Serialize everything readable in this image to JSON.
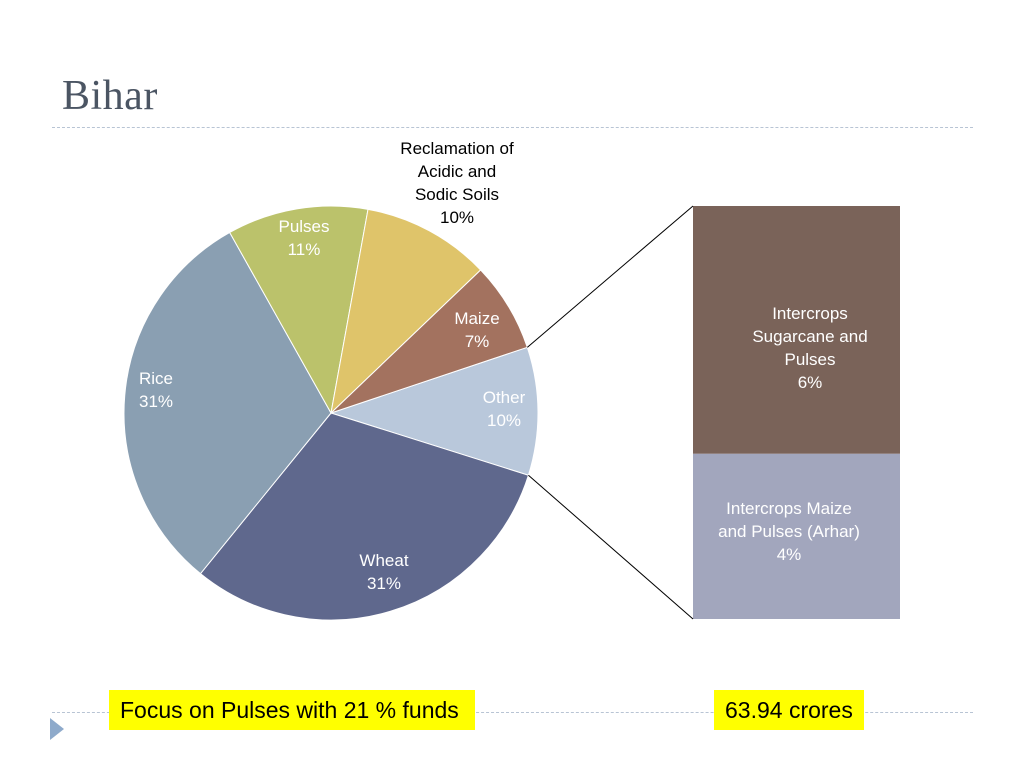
{
  "slide": {
    "title": "Bihar",
    "focus_text": "Focus on Pulses with 21 % funds",
    "amount_text": "63.94 crores",
    "highlight_color": "#ffff00"
  },
  "chart_data": {
    "type": "pie",
    "title": "",
    "slices": [
      {
        "label": "Other",
        "value": 10,
        "display": "10%",
        "color": "#b9c8db"
      },
      {
        "label": "Wheat",
        "value": 31,
        "display": "31%",
        "color": "#5f688d"
      },
      {
        "label": "Rice",
        "value": 31,
        "display": "31%",
        "color": "#8a9fb2"
      },
      {
        "label": "Pulses",
        "value": 11,
        "display": "11%",
        "color": "#bbc26b"
      },
      {
        "label": "Reclamation of Acidic and Sodic Soils",
        "value": 10,
        "display": "10%",
        "color": "#dfc46a"
      },
      {
        "label": "Maize",
        "value": 7,
        "display": "7%",
        "color": "#a3725f"
      }
    ],
    "breakdown_of": "Other",
    "breakdown": [
      {
        "label": "Intercrops Sugarcane and Pulses",
        "value": 6,
        "display": "6%",
        "color": "#7a6359"
      },
      {
        "label": "Intercrops Maize and Pulses (Arhar)",
        "value": 4,
        "display": "4%",
        "color": "#a2a6bd"
      }
    ]
  }
}
